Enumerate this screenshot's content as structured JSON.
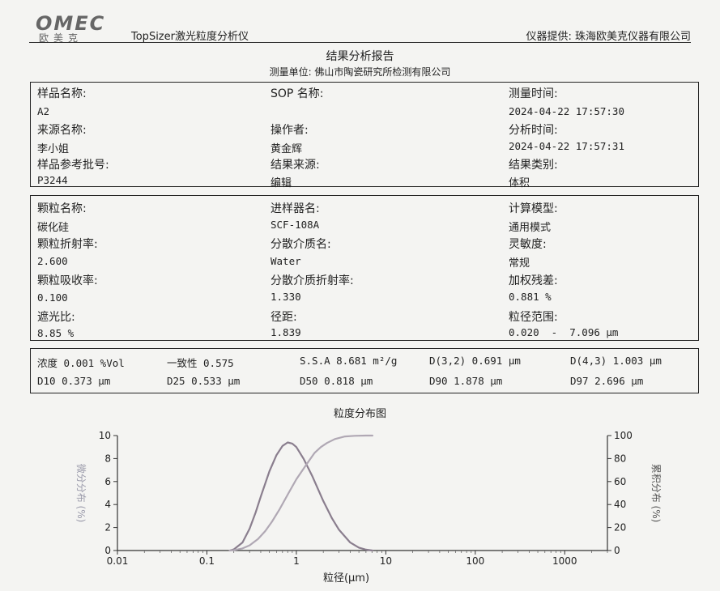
{
  "header": {
    "logo_text": "OMEC",
    "logo_sub": "欧美克",
    "app_title": "TopSizer激光粒度分析仪",
    "provider": "仪器提供: 珠海欧美克仪器有限公司",
    "report_title": "结果分析报告",
    "unit": "测量单位: 佛山市陶瓷研究所检测有限公司"
  },
  "sample": {
    "name_label": "样品名称:",
    "name": "A2",
    "sop_label": "SOP 名称:",
    "sop": "",
    "measure_time_label": "测量时间:",
    "measure_time": "2024-04-22 17:57:30",
    "source_label": "来源名称:",
    "source": "李小姐",
    "operator_label": "操作者:",
    "operator": "黄金辉",
    "analysis_time_label": "分析时间:",
    "analysis_time": "2024-04-22 17:57:31",
    "batch_label": "样品参考批号:",
    "batch": "P3244",
    "result_source_label": "结果来源:",
    "result_source": "编辑",
    "result_type_label": "结果类别:",
    "result_type": "体积"
  },
  "params": {
    "particle_label": "颗粒名称:",
    "particle": "碳化硅",
    "sampler_label": "进样器名:",
    "sampler": "SCF-108A",
    "model_label": "计算模型:",
    "model": "通用模式",
    "particle_ri_label": "颗粒折射率:",
    "particle_ri": "2.600",
    "dispersant_label": "分散介质名:",
    "dispersant": "Water",
    "sensitivity_label": "灵敏度:",
    "sensitivity": "常规",
    "absorption_label": "颗粒吸收率:",
    "absorption": "0.100",
    "dispersant_ri_label": "分散介质折射率:",
    "dispersant_ri": "1.330",
    "residual_label": "加权残差:",
    "residual": "0.881 %",
    "obscuration_label": "遮光比:",
    "obscuration": "8.85 %",
    "span_label": "径距:",
    "span": "1.839",
    "range_label": "粒径范围:",
    "range": "0.020  -  7.096 μm"
  },
  "stats": {
    "concentration": "浓度  0.001 %Vol",
    "uniformity": "一致性 0.575",
    "ssa": "S.S.A 8.681 m²/g",
    "d32": "D(3,2)  0.691 μm",
    "d43": "D(4,3)  1.003 μm",
    "d10": "D10 0.373 μm",
    "d25": "D25 0.533 μm",
    "d50": "D50 0.818 μm",
    "d90": "D90 1.878 μm",
    "d97": "D97 2.696 μm"
  },
  "chart_data": {
    "type": "line",
    "title": "粒度分布图",
    "xlabel": "粒径(μm)",
    "ylabel": "微分分布 (%)",
    "y2label": "累积分布 (%)",
    "x_scale": "log",
    "xlim": [
      0.01,
      3000
    ],
    "ylim": [
      0,
      10
    ],
    "y2lim": [
      0,
      100
    ],
    "x_ticks": [
      "0.01",
      "0.1",
      "1",
      "10",
      "100",
      "1000"
    ],
    "y_ticks": [
      "0",
      "2",
      "4",
      "6",
      "8",
      "10"
    ],
    "y2_ticks": [
      "0",
      "20",
      "40",
      "60",
      "80",
      "100"
    ],
    "grid": false,
    "series": [
      {
        "axis": "left",
        "color": "#8a7e8e",
        "x": [
          0.18,
          0.2,
          0.25,
          0.3,
          0.35,
          0.4,
          0.5,
          0.6,
          0.7,
          0.8,
          0.9,
          1.0,
          1.2,
          1.5,
          2.0,
          2.5,
          3.0,
          4.0,
          5.0,
          6.0,
          7.096
        ],
        "y": [
          0.0,
          0.1,
          0.7,
          1.9,
          3.3,
          4.7,
          6.9,
          8.3,
          9.1,
          9.4,
          9.3,
          9.0,
          8.0,
          6.5,
          4.3,
          2.8,
          1.8,
          0.7,
          0.25,
          0.08,
          0.0
        ]
      },
      {
        "axis": "right",
        "color": "#b0a8b4",
        "x": [
          0.18,
          0.2,
          0.25,
          0.3,
          0.373,
          0.45,
          0.533,
          0.65,
          0.818,
          1.0,
          1.3,
          1.6,
          1.878,
          2.2,
          2.696,
          3.5,
          4.5,
          6.0,
          7.096
        ],
        "y": [
          0,
          0.3,
          1.8,
          4.5,
          10,
          17,
          25,
          36,
          50,
          62,
          75,
          85,
          90,
          93.5,
          97,
          99.2,
          99.8,
          100,
          100
        ]
      }
    ]
  }
}
